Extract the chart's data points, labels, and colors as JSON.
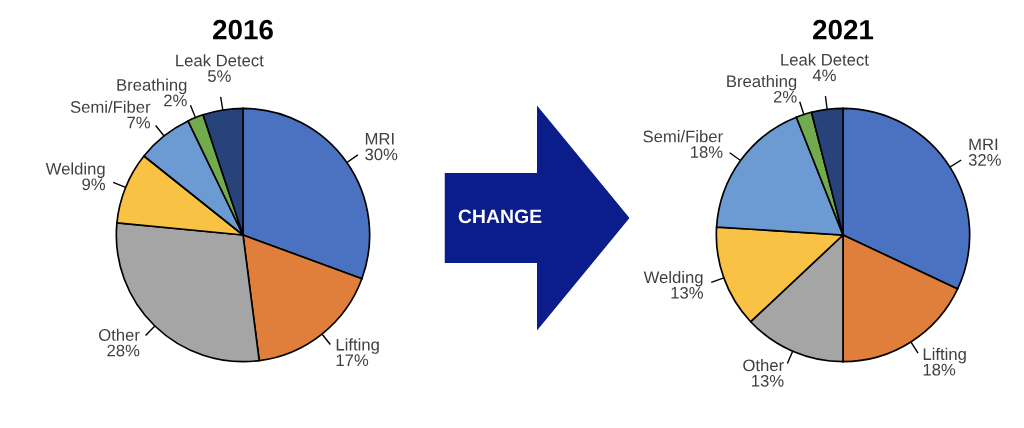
{
  "chart_data": [
    {
      "type": "pie",
      "title": "2016",
      "categories": [
        "MRI",
        "Lifting",
        "Other",
        "Welding",
        "Semi/Fiber",
        "Breathing",
        "Leak Detect"
      ],
      "values": [
        30,
        17,
        28,
        9,
        7,
        2,
        5
      ],
      "value_labels": [
        "30%",
        "17%",
        "28%",
        "9%",
        "7%",
        "2%",
        "5%"
      ],
      "colors": [
        "#4a72c0",
        "#e07e3c",
        "#a5a5a5",
        "#f9c244",
        "#6b9bd2",
        "#72ab4e",
        "#27437a"
      ]
    },
    {
      "type": "other",
      "annotations": [
        "CHANGE"
      ]
    },
    {
      "type": "pie",
      "title": "2021",
      "categories": [
        "MRI",
        "Lifting",
        "Other",
        "Welding",
        "Semi/Fiber",
        "Breathing",
        "Leak Detect"
      ],
      "values": [
        32,
        18,
        13,
        13,
        18,
        2,
        4
      ],
      "value_labels": [
        "32%",
        "18%",
        "13%",
        "13%",
        "18%",
        "2%",
        "4%"
      ],
      "colors": [
        "#4a72c0",
        "#e07e3c",
        "#a5a5a5",
        "#f9c244",
        "#6b9bd2",
        "#72ab4e",
        "#27437a"
      ]
    }
  ]
}
